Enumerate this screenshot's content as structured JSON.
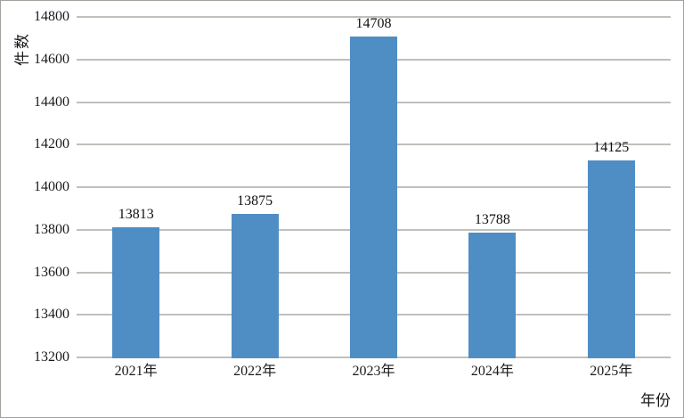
{
  "chart_data": {
    "type": "bar",
    "categories": [
      "2021年",
      "2022年",
      "2023年",
      "2024年",
      "2025年"
    ],
    "values": [
      13813,
      13875,
      14708,
      13788,
      14125
    ],
    "title": "",
    "xlabel": "年份",
    "ylabel": "件数",
    "ylim": [
      13200,
      14800
    ],
    "ytick_step": 200,
    "ytick_labels": [
      "13200",
      "13400",
      "13600",
      "13800",
      "14000",
      "14200",
      "14400",
      "14600",
      "14800"
    ],
    "grid": true,
    "legend": null,
    "bar_color": "#4f8dc5",
    "gridline_color": "#c0c0bb",
    "text_color": "#1a1a1a",
    "frame_border_color": "#a3a39e",
    "background_color": "#ffffff"
  }
}
